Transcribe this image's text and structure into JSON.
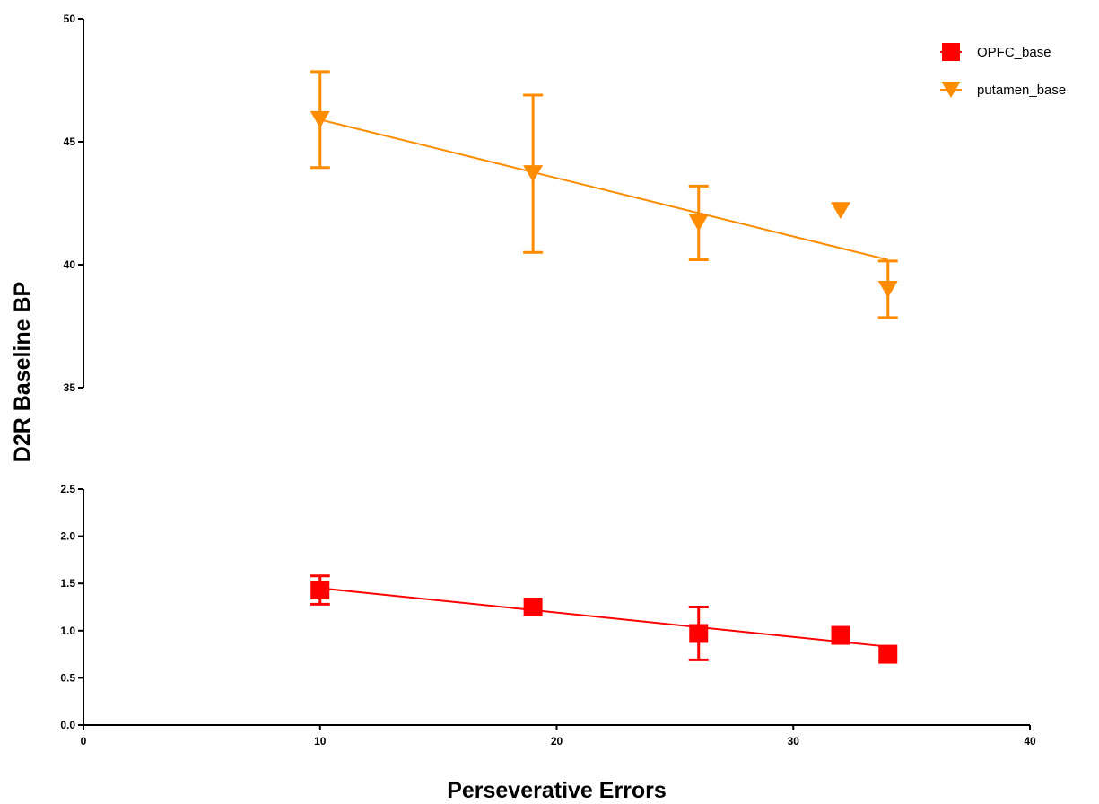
{
  "chart_data": {
    "type": "scatter",
    "xlabel": "Perseverative Errors",
    "ylabel": "D2R Baseline BP",
    "xlim": [
      0,
      40
    ],
    "x_ticks": [
      0,
      10,
      20,
      30,
      40
    ],
    "y_segments": [
      {
        "ylim": [
          35,
          50
        ],
        "ticks": [
          35,
          40,
          45,
          50
        ],
        "tick_labels": [
          "35",
          "40",
          "45",
          "50"
        ]
      },
      {
        "ylim": [
          0.0,
          2.5
        ],
        "ticks": [
          0.0,
          0.5,
          1.0,
          1.5,
          2.0,
          2.5
        ],
        "tick_labels": [
          "0.0",
          "0.5",
          "1.0",
          "1.5",
          "2.0",
          "2.5"
        ]
      }
    ],
    "grid": false,
    "legend_position": "top-right",
    "series": [
      {
        "name": "OPFC_base",
        "color": "#ff0000",
        "marker": "square",
        "segment": 1,
        "points": [
          {
            "x": 10,
            "y": 1.43,
            "err": 0.15
          },
          {
            "x": 19,
            "y": 1.25,
            "err": null
          },
          {
            "x": 26,
            "y": 0.97,
            "err": 0.28
          },
          {
            "x": 32,
            "y": 0.95,
            "err": null
          },
          {
            "x": 34,
            "y": 0.75,
            "err": null
          }
        ],
        "fit": {
          "x": [
            10,
            34
          ],
          "y": [
            1.45,
            0.83
          ]
        }
      },
      {
        "name": "putamen_base",
        "color": "#ff8c00",
        "marker": "triangle-down",
        "segment": 0,
        "points": [
          {
            "x": 10,
            "y": 45.9,
            "err": 1.95
          },
          {
            "x": 19,
            "y": 43.7,
            "err": 3.2
          },
          {
            "x": 26,
            "y": 41.7,
            "err": 1.5
          },
          {
            "x": 32,
            "y": 42.2,
            "err": null
          },
          {
            "x": 34,
            "y": 39.0,
            "err": 1.15
          }
        ],
        "fit": {
          "x": [
            10,
            34
          ],
          "y": [
            45.9,
            40.2
          ]
        }
      }
    ]
  }
}
